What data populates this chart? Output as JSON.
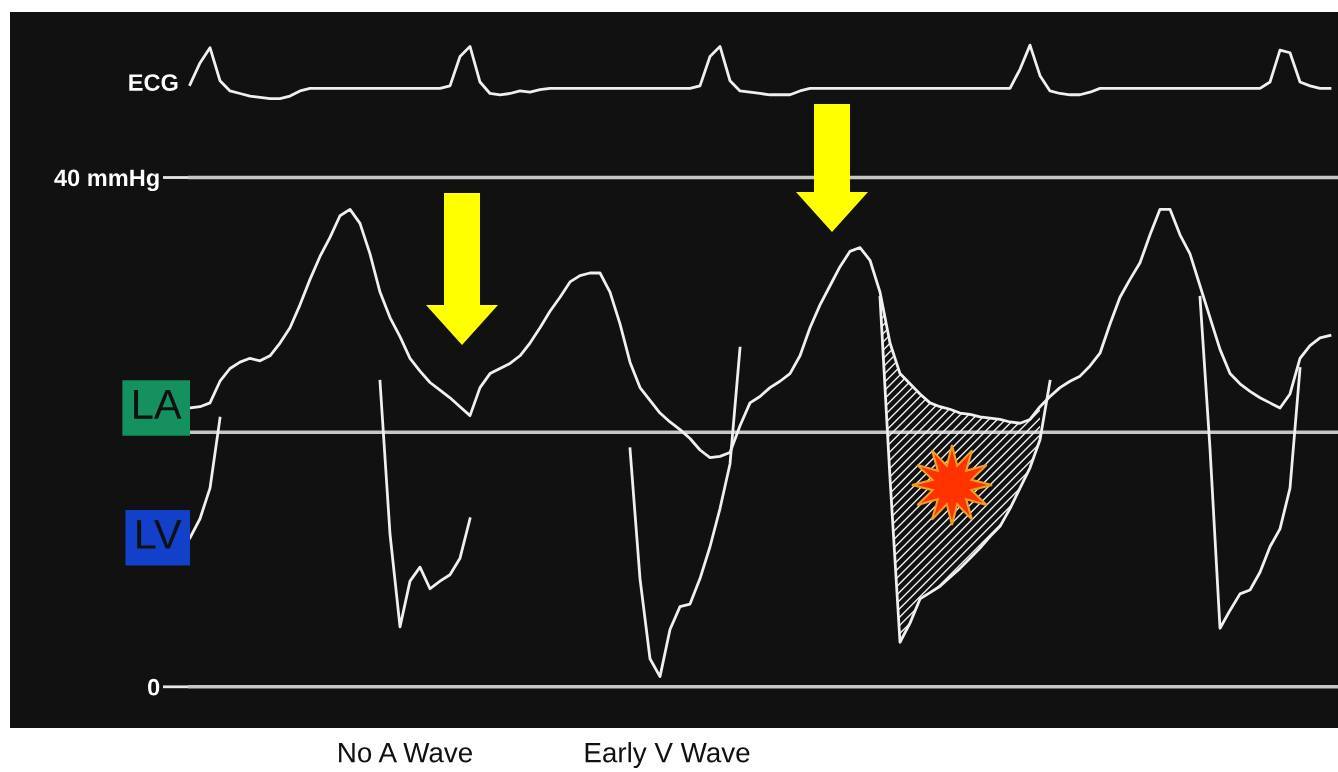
{
  "chart_data": {
    "type": "line",
    "categories": [
      null,
      null,
      null,
      null,
      null,
      null,
      null,
      null,
      null,
      null,
      null,
      null,
      null,
      null,
      null,
      null,
      null,
      null,
      null,
      null,
      null,
      null,
      null,
      null,
      null,
      null,
      null,
      null,
      null,
      null,
      null,
      null,
      null,
      null,
      null,
      null,
      null,
      null,
      null,
      null,
      null,
      null,
      null,
      null,
      null,
      null,
      null,
      null,
      null,
      null,
      null,
      null,
      null,
      null,
      null,
      null,
      null,
      null,
      null,
      null,
      null,
      null,
      null,
      null,
      null,
      null,
      null,
      null,
      null,
      null,
      null,
      null,
      null,
      null,
      null,
      null,
      null,
      null,
      null,
      null,
      null,
      null,
      null,
      null,
      null,
      null,
      null,
      null,
      null,
      null,
      null,
      null,
      null,
      null,
      null,
      null,
      null,
      null,
      null,
      null,
      null,
      null,
      null,
      null,
      null,
      null,
      null,
      null,
      null,
      null,
      null,
      null,
      null,
      null,
      null
    ],
    "series": [
      {
        "name": "ECG",
        "color": "#f0f0f0",
        "values": [
          47.3,
          49,
          50.2,
          47.6,
          46.8,
          46.6,
          46.4,
          46.3,
          46.2,
          46.2,
          46.4,
          46.8,
          47,
          47,
          47,
          47,
          47,
          47,
          47,
          47,
          47,
          47,
          47,
          47,
          47,
          47,
          47.2,
          49.5,
          50.3,
          47.5,
          46.6,
          46.5,
          46.6,
          46.8,
          46.7,
          46.9,
          47,
          47,
          47,
          47,
          47,
          47,
          47,
          47,
          47,
          47,
          47,
          47,
          47,
          47,
          47,
          47.2,
          49.5,
          50.3,
          47.6,
          46.8,
          46.7,
          46.6,
          46.5,
          46.5,
          46.5,
          46.8,
          47,
          47,
          47,
          47,
          47,
          47,
          47,
          47,
          47,
          47,
          47,
          47,
          47,
          47,
          47,
          47,
          47,
          47,
          47,
          47,
          47,
          48.5,
          50.4,
          48,
          46.8,
          46.6,
          46.5,
          46.5,
          46.7,
          47,
          47,
          47,
          47,
          47,
          47,
          47,
          47,
          47,
          47,
          47,
          47,
          47,
          47,
          47,
          47,
          47,
          47.5,
          50,
          49.8,
          47.5,
          47.2,
          47,
          47
        ]
      },
      {
        "name": "LA",
        "color": "#f0f0f0",
        "values": [
          21.9,
          22.0,
          22.3,
          24,
          25,
          25.5,
          25.8,
          25.6,
          26,
          27,
          28.2,
          30,
          32,
          33.8,
          35.3,
          37,
          37.5,
          36.4,
          34,
          31,
          29,
          27.5,
          25.8,
          24.8,
          23.9,
          23.3,
          22.7,
          22,
          21.3,
          23.5,
          24.6,
          25,
          25.4,
          26,
          27,
          28.2,
          29.5,
          30.6,
          31.8,
          32.3,
          32.5,
          32.5,
          31,
          28.5,
          25.5,
          23.5,
          22.5,
          21.5,
          20.8,
          20.2,
          19.5,
          18.6,
          18,
          18.1,
          18.4,
          20.5,
          22.3,
          22.8,
          23.5,
          24,
          24.6,
          26,
          28.2,
          30,
          31.5,
          33,
          34.2,
          34.5,
          33.5,
          31,
          27,
          24.6,
          23.8,
          23,
          22.3,
          22,
          21.8,
          21.5,
          21.4,
          21.2,
          21.1,
          21,
          20.8,
          20.7,
          21,
          22,
          22.8,
          23.5,
          24,
          24.4,
          25.2,
          26.2,
          28.5,
          30.6,
          32,
          33.3,
          35.5,
          37.5,
          37.5,
          35.5,
          34,
          31.5,
          29,
          26.5,
          24.6,
          23.8,
          23.2,
          22.7,
          22.3,
          21.9,
          23,
          25.8,
          26.8,
          27.4,
          27.6
        ]
      },
      {
        "name": "LV",
        "color": "#f0f0f0",
        "values": [
          11.7,
          13.2,
          15.6,
          21.1,
          null,
          null,
          null,
          null,
          null,
          null,
          null,
          null,
          null,
          null,
          null,
          null,
          null,
          null,
          null,
          24,
          12,
          4.7,
          8.3,
          9.4,
          7.7,
          8.3,
          8.8,
          10.1,
          13.2,
          null,
          null,
          null,
          null,
          null,
          null,
          null,
          null,
          null,
          null,
          null,
          null,
          null,
          null,
          null,
          18.7,
          8.5,
          2.2,
          0.8,
          4.5,
          6.3,
          6.5,
          8.5,
          11,
          14,
          17.5,
          26.6,
          null,
          null,
          null,
          null,
          null,
          null,
          null,
          null,
          null,
          null,
          null,
          null,
          null,
          30.6,
          16.4,
          3.5,
          5,
          6.9,
          7.4,
          7.9,
          8.6,
          9.3,
          10.1,
          10.9,
          11.8,
          12.6,
          14,
          15.6,
          17.2,
          19.4,
          24,
          null,
          null,
          null,
          null,
          null,
          null,
          null,
          null,
          null,
          null,
          null,
          null,
          null,
          null,
          30.6,
          18.7,
          4.6,
          6,
          7.3,
          7.6,
          9,
          11,
          12.4,
          15.6,
          25,
          null,
          null,
          null
        ],
        "upper": [
          null,
          null,
          null,
          null,
          null,
          null,
          null,
          null,
          null,
          null,
          null,
          null,
          null,
          null,
          null,
          null,
          null,
          null,
          null,
          null,
          null,
          null,
          null,
          null,
          null,
          null,
          null,
          null,
          null,
          null,
          null,
          null,
          null,
          null,
          null,
          null,
          null,
          null,
          null,
          null,
          null,
          null,
          null,
          null,
          null,
          null,
          null,
          null,
          null,
          null,
          null,
          null,
          null,
          null,
          null,
          null,
          null,
          null,
          null,
          null,
          null,
          null,
          null,
          null,
          null,
          null,
          null,
          null,
          null,
          31,
          27,
          24.6,
          23.8,
          23,
          22.3,
          22,
          21.8,
          21.5,
          21.4,
          21.2,
          21.1,
          21,
          20.8,
          20.7,
          21,
          22,
          null,
          null,
          null,
          null,
          null,
          null,
          null,
          null,
          null,
          null,
          null,
          null,
          null,
          null,
          null,
          null,
          null,
          null,
          null,
          null,
          null,
          null,
          null,
          null,
          null,
          null,
          null,
          null,
          null
        ],
        "lower": [
          null,
          null,
          null,
          null,
          null,
          null,
          null,
          null,
          null,
          null,
          null,
          null,
          null,
          null,
          null,
          null,
          null,
          null,
          null,
          null,
          null,
          null,
          null,
          null,
          null,
          null,
          null,
          null,
          null,
          null,
          null,
          null,
          null,
          null,
          null,
          null,
          null,
          null,
          null,
          null,
          null,
          null,
          null,
          null,
          null,
          null,
          null,
          null,
          null,
          null,
          null,
          null,
          null,
          null,
          null,
          null,
          null,
          null,
          null,
          null,
          null,
          null,
          null,
          null,
          null,
          null,
          null,
          null,
          null,
          30.6,
          16.4,
          3.5,
          5,
          6.9,
          7.4,
          7.9,
          8.6,
          9.3,
          10.1,
          10.9,
          11.8,
          12.6,
          14,
          15.6,
          17.2,
          19.4,
          null,
          null,
          null,
          null,
          null,
          null,
          null,
          null,
          null,
          null,
          null,
          null,
          null,
          null,
          null,
          null,
          null,
          null,
          null,
          null,
          null,
          null,
          null,
          null,
          null,
          null,
          null,
          null,
          null
        ]
      }
    ],
    "ylim": [
      -3,
      53
    ],
    "yticks": [
      0,
      {
        "value": 20,
        "label": null
      },
      {
        "value": 40,
        "label": "40 mmHg"
      }
    ],
    "grid": "y",
    "tick_labels": "y",
    "annotations": [
      "No A Wave",
      "Early V Wave"
    ]
  }
}
